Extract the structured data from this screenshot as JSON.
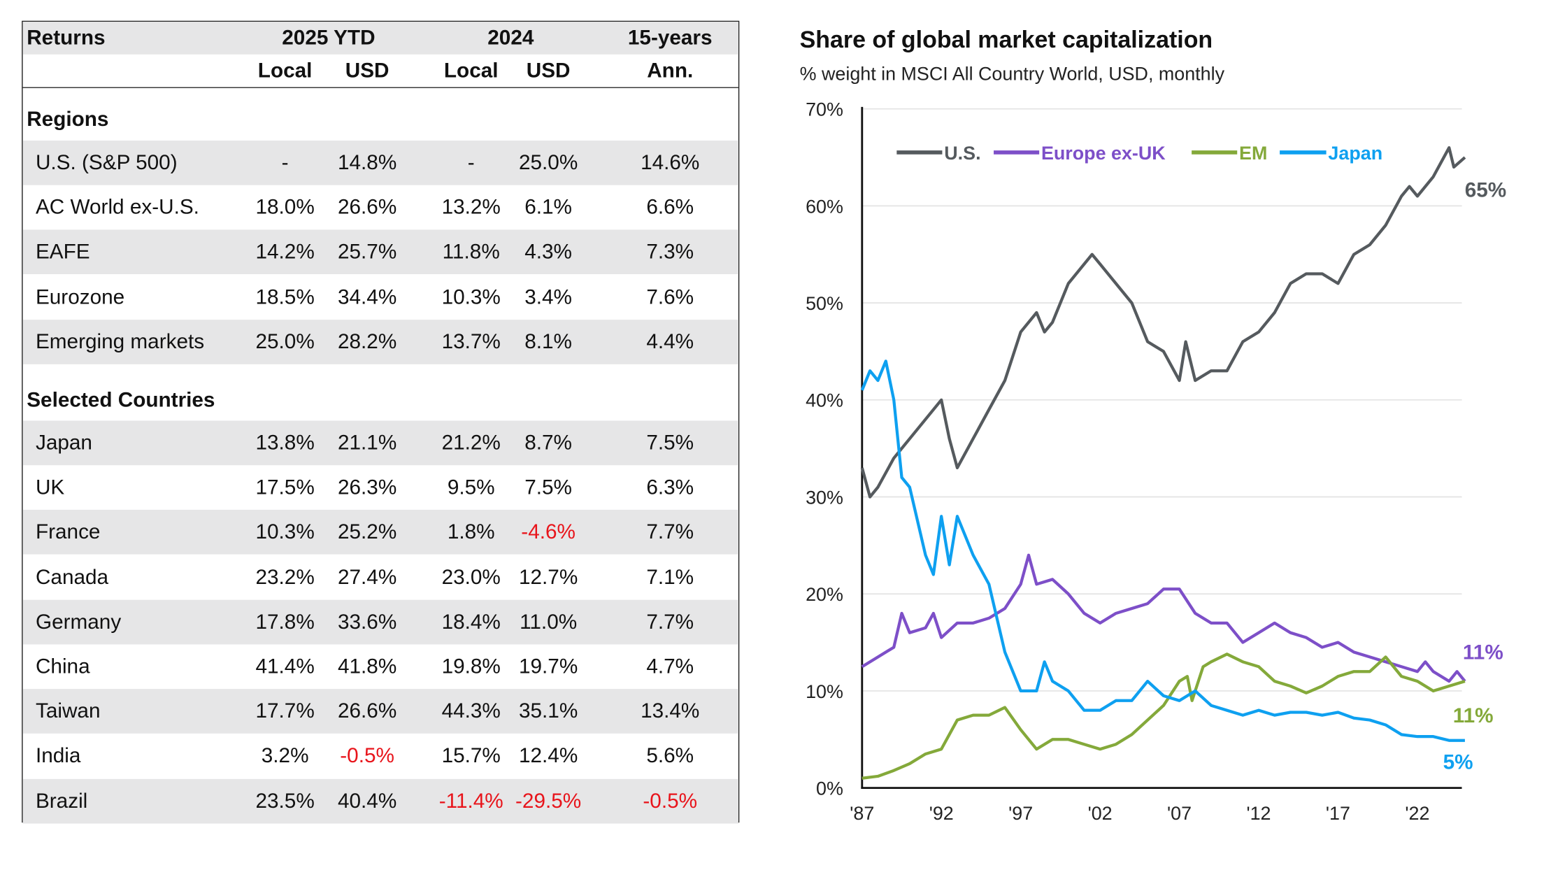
{
  "table": {
    "header": {
      "returns": "Returns",
      "ytd": "2025 YTD",
      "y2024": "2024",
      "fifteen": "15-years",
      "local": "Local",
      "usd": "USD",
      "ann": "Ann."
    },
    "sections": [
      {
        "title": "Regions",
        "rows": [
          {
            "name": "U.S. (S&P 500)",
            "values": [
              "-",
              "14.8%",
              "-",
              "25.0%",
              "14.6%"
            ]
          },
          {
            "name": "AC World ex-U.S.",
            "values": [
              "18.0%",
              "26.6%",
              "13.2%",
              "6.1%",
              "6.6%"
            ]
          },
          {
            "name": "EAFE",
            "values": [
              "14.2%",
              "25.7%",
              "11.8%",
              "4.3%",
              "7.3%"
            ]
          },
          {
            "name": "Eurozone",
            "values": [
              "18.5%",
              "34.4%",
              "10.3%",
              "3.4%",
              "7.6%"
            ]
          },
          {
            "name": "Emerging markets",
            "values": [
              "25.0%",
              "28.2%",
              "13.7%",
              "8.1%",
              "4.4%"
            ]
          }
        ]
      },
      {
        "title": "Selected Countries",
        "rows": [
          {
            "name": "Japan",
            "values": [
              "13.8%",
              "21.1%",
              "21.2%",
              "8.7%",
              "7.5%"
            ]
          },
          {
            "name": "UK",
            "values": [
              "17.5%",
              "26.3%",
              "9.5%",
              "7.5%",
              "6.3%"
            ]
          },
          {
            "name": "France",
            "values": [
              "10.3%",
              "25.2%",
              "1.8%",
              "-4.6%",
              "7.7%"
            ]
          },
          {
            "name": "Canada",
            "values": [
              "23.2%",
              "27.4%",
              "23.0%",
              "12.7%",
              "7.1%"
            ]
          },
          {
            "name": "Germany",
            "values": [
              "17.8%",
              "33.6%",
              "18.4%",
              "11.0%",
              "7.7%"
            ]
          },
          {
            "name": "China",
            "values": [
              "41.4%",
              "41.8%",
              "19.8%",
              "19.7%",
              "4.7%"
            ]
          },
          {
            "name": "Taiwan",
            "values": [
              "17.7%",
              "26.6%",
              "44.3%",
              "35.1%",
              "13.4%"
            ]
          },
          {
            "name": "India",
            "values": [
              "3.2%",
              "-0.5%",
              "15.7%",
              "12.4%",
              "5.6%"
            ]
          },
          {
            "name": "Brazil",
            "values": [
              "23.5%",
              "40.4%",
              "-11.4%",
              "-29.5%",
              "-0.5%"
            ]
          }
        ]
      }
    ],
    "negative_color": "#e8141b"
  },
  "chart_data": {
    "type": "line",
    "title": "Share of global market capitalization",
    "subtitle": "% weight in MSCI All Country World, USD, monthly",
    "ylim": [
      0,
      70
    ],
    "yticks": [
      "0%",
      "10%",
      "20%",
      "30%",
      "40%",
      "50%",
      "60%",
      "70%"
    ],
    "ytick_values": [
      0,
      10,
      20,
      30,
      40,
      50,
      60,
      70
    ],
    "xlim": [
      1987,
      2025
    ],
    "xticks": [
      "'87",
      "'92",
      "'97",
      "'02",
      "'07",
      "'12",
      "'17",
      "'22"
    ],
    "xtick_values": [
      1987,
      1992,
      1997,
      2002,
      2007,
      2012,
      2017,
      2022
    ],
    "grid": true,
    "legend_position": "top",
    "series": [
      {
        "name": "U.S.",
        "color": "#555a5e",
        "end_label": "65%",
        "x": [
          1987,
          1987.5,
          1988,
          1989,
          1990,
          1991,
          1992,
          1992.5,
          1993,
          1994,
          1995,
          1996,
          1997,
          1998,
          1998.5,
          1999,
          2000,
          2001,
          2001.5,
          2002,
          2003,
          2004,
          2005,
          2006,
          2007,
          2007.4,
          2008,
          2009,
          2010,
          2011,
          2012,
          2013,
          2014,
          2015,
          2016,
          2017,
          2018,
          2019,
          2020,
          2021,
          2021.5,
          2022,
          2023,
          2024,
          2024.3,
          2025
        ],
        "y": [
          33,
          30,
          31,
          34,
          36,
          38,
          40,
          36,
          33,
          36,
          39,
          42,
          47,
          49,
          47,
          48,
          52,
          54,
          55,
          54,
          52,
          50,
          46,
          45,
          42,
          46,
          42,
          43,
          43,
          46,
          47,
          49,
          52,
          53,
          53,
          52,
          55,
          56,
          58,
          61,
          62,
          61,
          63,
          66,
          64,
          65
        ]
      },
      {
        "name": "Europe ex-UK",
        "color": "#7d4fc8",
        "end_label": "11%",
        "x": [
          1987,
          1988,
          1989,
          1989.5,
          1990,
          1991,
          1991.5,
          1992,
          1993,
          1994,
          1995,
          1996,
          1997,
          1997.5,
          1998,
          1999,
          2000,
          2001,
          2002,
          2003,
          2004,
          2005,
          2006,
          2007,
          2008,
          2009,
          2010,
          2011,
          2012,
          2013,
          2014,
          2015,
          2016,
          2017,
          2018,
          2019,
          2020,
          2021,
          2022,
          2022.5,
          2023,
          2024,
          2024.5,
          2025
        ],
        "y": [
          12.5,
          13.5,
          14.5,
          18,
          16,
          16.5,
          18,
          15.5,
          17,
          17,
          17.5,
          18.5,
          21,
          24,
          21,
          21.5,
          20,
          18,
          17,
          18,
          18.5,
          19,
          20.5,
          20.5,
          18,
          17,
          17,
          15,
          16,
          17,
          16,
          15.5,
          14.5,
          15,
          14,
          13.5,
          13,
          12.5,
          12,
          13,
          12,
          11,
          12,
          11
        ]
      },
      {
        "name": "EM",
        "color": "#84a93a",
        "end_label": "11%",
        "x": [
          1987,
          1988,
          1989,
          1990,
          1991,
          1992,
          1993,
          1994,
          1995,
          1996,
          1997,
          1998,
          1999,
          2000,
          2001,
          2002,
          2003,
          2004,
          2005,
          2006,
          2007,
          2007.5,
          2007.8,
          2008.5,
          2009,
          2010,
          2011,
          2012,
          2013,
          2014,
          2015,
          2016,
          2017,
          2018,
          2019,
          2020,
          2021,
          2022,
          2023,
          2024,
          2025
        ],
        "y": [
          1,
          1.2,
          1.8,
          2.5,
          3.5,
          4,
          7,
          7.5,
          7.5,
          8.3,
          6,
          4,
          5,
          5,
          4.5,
          4,
          4.5,
          5.5,
          7,
          8.5,
          11,
          11.5,
          9,
          12.5,
          13,
          13.8,
          13,
          12.5,
          11,
          10.5,
          9.8,
          10.5,
          11.5,
          12,
          12,
          13.5,
          11.5,
          11,
          10,
          10.5,
          11
        ]
      },
      {
        "name": "Japan",
        "color": "#0ea0f0",
        "end_label": "5%",
        "x": [
          1987,
          1987.5,
          1988,
          1988.5,
          1989,
          1989.5,
          1990,
          1991,
          1991.5,
          1992,
          1992.5,
          1993,
          1994,
          1995,
          1996,
          1997,
          1998,
          1998.5,
          1999,
          2000,
          2001,
          2002,
          2003,
          2004,
          2005,
          2006,
          2007,
          2008,
          2009,
          2010,
          2011,
          2012,
          2013,
          2014,
          2015,
          2016,
          2017,
          2018,
          2019,
          2020,
          2021,
          2022,
          2023,
          2024,
          2025
        ],
        "y": [
          41,
          43,
          42,
          44,
          40,
          32,
          31,
          24,
          22,
          28,
          23,
          28,
          24,
          21,
          14,
          10,
          10,
          13,
          11,
          10,
          8,
          8,
          9,
          9,
          11,
          9.5,
          9,
          10,
          8.5,
          8,
          7.5,
          8,
          7.5,
          7.8,
          7.8,
          7.5,
          7.8,
          7.2,
          7,
          6.5,
          5.5,
          5.3,
          5.3,
          4.9,
          4.9
        ]
      }
    ]
  }
}
